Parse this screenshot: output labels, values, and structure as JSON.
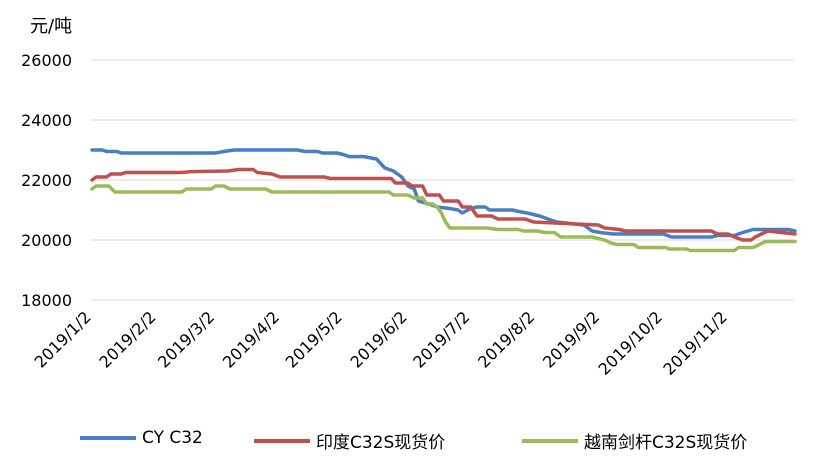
{
  "chart_data": {
    "type": "line",
    "unit_label": "元/吨",
    "y_ticks": [
      "26000",
      "24000",
      "22000",
      "20000",
      "18000"
    ],
    "ylim": [
      18000,
      26000
    ],
    "x_tick_labels": [
      "2019/1/2",
      "2019/2/2",
      "2019/3/2",
      "2019/4/2",
      "2019/5/2",
      "2019/6/2",
      "2019/7/2",
      "2019/8/2",
      "2019/9/2",
      "2019/10/2",
      "2019/11/2"
    ],
    "x_tick_dates": [
      "2019-01-02",
      "2019-02-02",
      "2019-03-02",
      "2019-04-02",
      "2019-05-02",
      "2019-06-02",
      "2019-07-02",
      "2019-08-02",
      "2019-09-02",
      "2019-10-02",
      "2019-11-02"
    ],
    "x_range": [
      "2019-01-02",
      "2019-12-04"
    ],
    "grid": "horizontal",
    "legend_position": "bottom",
    "series": [
      {
        "name": "CY C32",
        "color": "#4a7ec2",
        "points": [
          [
            "2019-01-02",
            23000
          ],
          [
            "2019-01-07",
            23000
          ],
          [
            "2019-01-09",
            22950
          ],
          [
            "2019-01-14",
            22950
          ],
          [
            "2019-01-16",
            22900
          ],
          [
            "2019-03-02",
            22900
          ],
          [
            "2019-03-06",
            22950
          ],
          [
            "2019-03-11",
            23000
          ],
          [
            "2019-04-10",
            23000
          ],
          [
            "2019-04-14",
            22950
          ],
          [
            "2019-04-20",
            22950
          ],
          [
            "2019-04-22",
            22900
          ],
          [
            "2019-04-29",
            22900
          ],
          [
            "2019-05-02",
            22850
          ],
          [
            "2019-05-05",
            22780
          ],
          [
            "2019-05-12",
            22780
          ],
          [
            "2019-05-18",
            22700
          ],
          [
            "2019-05-22",
            22400
          ],
          [
            "2019-05-26",
            22300
          ],
          [
            "2019-05-30",
            22100
          ],
          [
            "2019-06-02",
            21800
          ],
          [
            "2019-06-05",
            21700
          ],
          [
            "2019-06-07",
            21300
          ],
          [
            "2019-06-12",
            21200
          ],
          [
            "2019-06-16",
            21100
          ],
          [
            "2019-06-22",
            21050
          ],
          [
            "2019-06-26",
            21000
          ],
          [
            "2019-06-28",
            20900
          ],
          [
            "2019-07-02",
            21050
          ],
          [
            "2019-07-05",
            21100
          ],
          [
            "2019-07-09",
            21100
          ],
          [
            "2019-07-11",
            21000
          ],
          [
            "2019-07-22",
            21000
          ],
          [
            "2019-07-25",
            20950
          ],
          [
            "2019-07-29",
            20900
          ],
          [
            "2019-08-04",
            20800
          ],
          [
            "2019-08-08",
            20700
          ],
          [
            "2019-08-12",
            20600
          ],
          [
            "2019-08-25",
            20500
          ],
          [
            "2019-08-29",
            20300
          ],
          [
            "2019-09-02",
            20250
          ],
          [
            "2019-09-08",
            20200
          ],
          [
            "2019-10-02",
            20200
          ],
          [
            "2019-10-06",
            20100
          ],
          [
            "2019-10-25",
            20100
          ],
          [
            "2019-10-28",
            20150
          ],
          [
            "2019-11-05",
            20150
          ],
          [
            "2019-11-09",
            20250
          ],
          [
            "2019-11-14",
            20350
          ],
          [
            "2019-12-01",
            20350
          ],
          [
            "2019-12-04",
            20300
          ]
        ]
      },
      {
        "name": "印度C32S现货价",
        "color": "#c0504d",
        "points": [
          [
            "2019-01-02",
            22000
          ],
          [
            "2019-01-04",
            22100
          ],
          [
            "2019-01-09",
            22100
          ],
          [
            "2019-01-11",
            22200
          ],
          [
            "2019-01-16",
            22200
          ],
          [
            "2019-01-18",
            22250
          ],
          [
            "2019-02-14",
            22250
          ],
          [
            "2019-02-18",
            22280
          ],
          [
            "2019-03-08",
            22300
          ],
          [
            "2019-03-13",
            22350
          ],
          [
            "2019-03-20",
            22350
          ],
          [
            "2019-03-22",
            22250
          ],
          [
            "2019-03-29",
            22200
          ],
          [
            "2019-04-02",
            22100
          ],
          [
            "2019-04-23",
            22100
          ],
          [
            "2019-04-26",
            22050
          ],
          [
            "2019-05-25",
            22050
          ],
          [
            "2019-05-27",
            21900
          ],
          [
            "2019-06-02",
            21900
          ],
          [
            "2019-06-04",
            21800
          ],
          [
            "2019-06-09",
            21800
          ],
          [
            "2019-06-11",
            21500
          ],
          [
            "2019-06-17",
            21500
          ],
          [
            "2019-06-19",
            21300
          ],
          [
            "2019-06-26",
            21300
          ],
          [
            "2019-06-28",
            21100
          ],
          [
            "2019-07-02",
            21100
          ],
          [
            "2019-07-05",
            20800
          ],
          [
            "2019-07-12",
            20800
          ],
          [
            "2019-07-15",
            20700
          ],
          [
            "2019-07-28",
            20700
          ],
          [
            "2019-08-01",
            20600
          ],
          [
            "2019-09-01",
            20500
          ],
          [
            "2019-09-04",
            20400
          ],
          [
            "2019-09-11",
            20350
          ],
          [
            "2019-09-14",
            20300
          ],
          [
            "2019-10-25",
            20300
          ],
          [
            "2019-10-28",
            20200
          ],
          [
            "2019-11-02",
            20200
          ],
          [
            "2019-11-05",
            20100
          ],
          [
            "2019-11-09",
            20000
          ],
          [
            "2019-11-13",
            20000
          ],
          [
            "2019-11-15",
            20100
          ],
          [
            "2019-11-18",
            20200
          ],
          [
            "2019-11-21",
            20300
          ],
          [
            "2019-12-04",
            20200
          ]
        ]
      },
      {
        "name": "越南剑杆C32S现货价",
        "color": "#9bbb59",
        "points": [
          [
            "2019-01-02",
            21700
          ],
          [
            "2019-01-04",
            21800
          ],
          [
            "2019-01-10",
            21800
          ],
          [
            "2019-01-13",
            21600
          ],
          [
            "2019-02-14",
            21600
          ],
          [
            "2019-02-16",
            21700
          ],
          [
            "2019-02-28",
            21700
          ],
          [
            "2019-03-02",
            21800
          ],
          [
            "2019-03-06",
            21800
          ],
          [
            "2019-03-09",
            21700
          ],
          [
            "2019-03-26",
            21700
          ],
          [
            "2019-03-29",
            21600
          ],
          [
            "2019-05-24",
            21600
          ],
          [
            "2019-05-26",
            21500
          ],
          [
            "2019-06-02",
            21500
          ],
          [
            "2019-06-05",
            21400
          ],
          [
            "2019-06-09",
            21400
          ],
          [
            "2019-06-11",
            21200
          ],
          [
            "2019-06-14",
            21200
          ],
          [
            "2019-06-16",
            21100
          ],
          [
            "2019-06-18",
            20900
          ],
          [
            "2019-06-20",
            20600
          ],
          [
            "2019-06-22",
            20400
          ],
          [
            "2019-07-10",
            20400
          ],
          [
            "2019-07-15",
            20350
          ],
          [
            "2019-07-25",
            20350
          ],
          [
            "2019-07-27",
            20300
          ],
          [
            "2019-08-03",
            20300
          ],
          [
            "2019-08-06",
            20250
          ],
          [
            "2019-08-11",
            20250
          ],
          [
            "2019-08-14",
            20100
          ],
          [
            "2019-08-29",
            20100
          ],
          [
            "2019-09-01",
            20050
          ],
          [
            "2019-09-04",
            20000
          ],
          [
            "2019-09-07",
            19900
          ],
          [
            "2019-09-10",
            19850
          ],
          [
            "2019-09-18",
            19850
          ],
          [
            "2019-09-20",
            19750
          ],
          [
            "2019-10-03",
            19750
          ],
          [
            "2019-10-05",
            19700
          ],
          [
            "2019-10-13",
            19700
          ],
          [
            "2019-10-15",
            19650
          ],
          [
            "2019-11-05",
            19650
          ],
          [
            "2019-11-07",
            19750
          ],
          [
            "2019-11-14",
            19750
          ],
          [
            "2019-11-17",
            19850
          ],
          [
            "2019-11-20",
            19950
          ],
          [
            "2019-12-04",
            19950
          ]
        ]
      }
    ]
  }
}
